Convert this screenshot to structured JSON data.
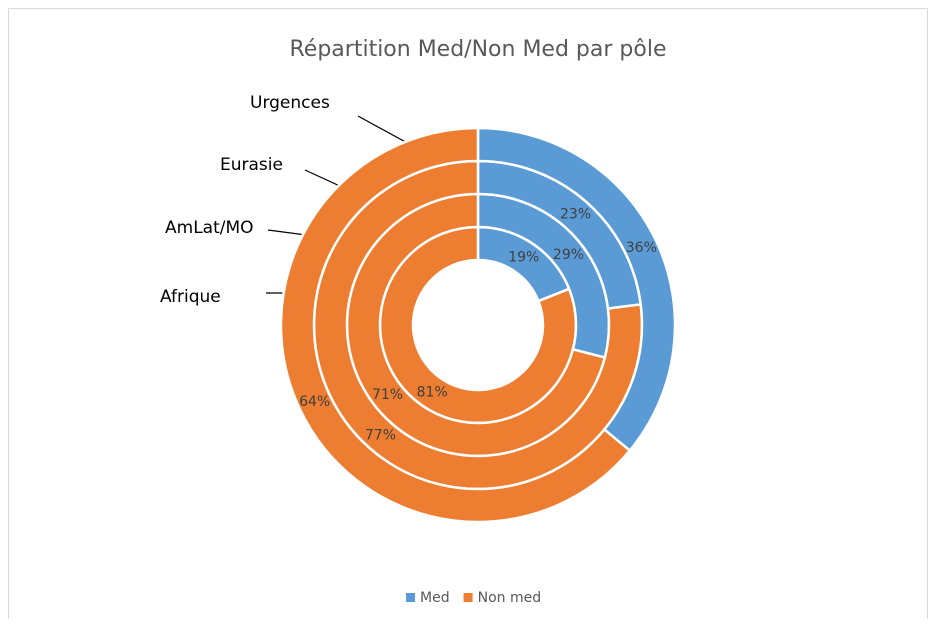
{
  "chart_data": {
    "type": "doughnut",
    "title": "Répartition Med/Non Med par pôle",
    "categories": [
      "Afrique",
      "AmLat/MO",
      "Eurasie",
      "Urgences"
    ],
    "series": [
      {
        "name": "Med",
        "color": "#5b9bd5",
        "values": [
          19,
          29,
          23,
          36
        ],
        "value_labels": [
          "19%",
          "29%",
          "23%",
          "36%"
        ]
      },
      {
        "name": "Non med",
        "color": "#ed7d31",
        "values": [
          81,
          71,
          77,
          64
        ],
        "value_labels": [
          "81%",
          "71%",
          "77%",
          "64%"
        ]
      }
    ],
    "legend": "bottom"
  }
}
